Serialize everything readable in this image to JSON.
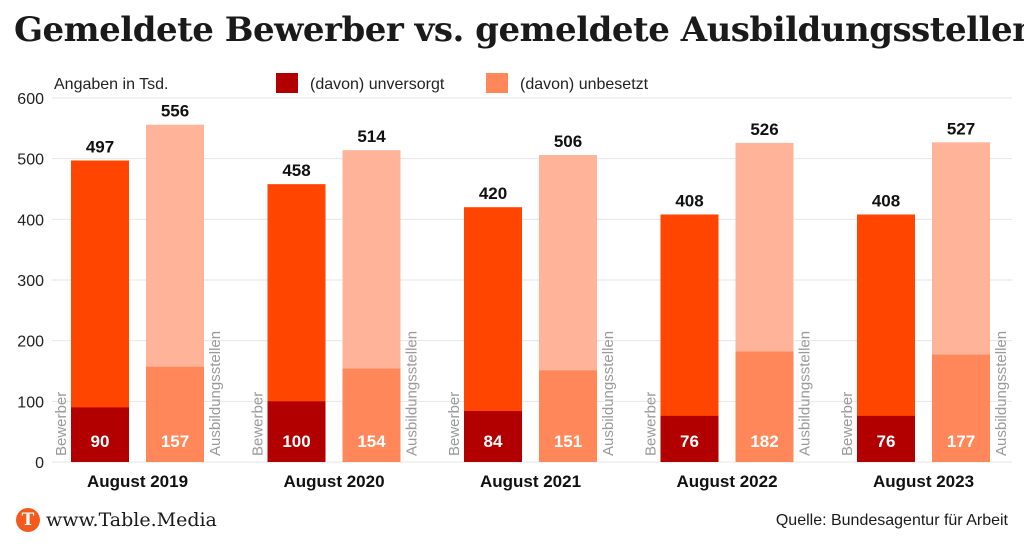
{
  "title": "Gemeldete Bewerber vs. gemeldete Ausbildungsstellen",
  "footer": {
    "logo_letter": "T",
    "site": "www.Table.Media",
    "source": "Quelle: Bundesagentur für Arbeit"
  },
  "colors": {
    "bewerber": "#ff4500",
    "unversorgt": "#b20000",
    "stellen": "#ffb49a",
    "unbesetzt": "#ff8759",
    "grid": "#e6e6e6",
    "side_label": "#9a9a9a"
  },
  "chart_data": {
    "type": "bar",
    "unit_label": "Angaben in Tsd.",
    "categories": [
      "August 2019",
      "August 2020",
      "August 2021",
      "August 2022",
      "August 2023"
    ],
    "ylim": [
      0,
      600
    ],
    "yticks": [
      0,
      100,
      200,
      300,
      400,
      500,
      600
    ],
    "grid": true,
    "legend_position": "top",
    "legend": [
      {
        "label": "(davon) unversorgt",
        "color": "#b20000"
      },
      {
        "label": "(davon) unbesetzt",
        "color": "#ff8759"
      }
    ],
    "bar_labels": {
      "bewerber": "Bewerber",
      "stellen": "Ausbildungsstellen"
    },
    "series": [
      {
        "name": "Bewerber",
        "values": [
          497,
          458,
          420,
          408,
          408
        ]
      },
      {
        "name": "(davon) unversorgt",
        "values": [
          90,
          100,
          84,
          76,
          76
        ]
      },
      {
        "name": "Ausbildungsstellen",
        "values": [
          556,
          514,
          506,
          526,
          527
        ]
      },
      {
        "name": "(davon) unbesetzt",
        "values": [
          157,
          154,
          151,
          182,
          177
        ]
      }
    ]
  }
}
